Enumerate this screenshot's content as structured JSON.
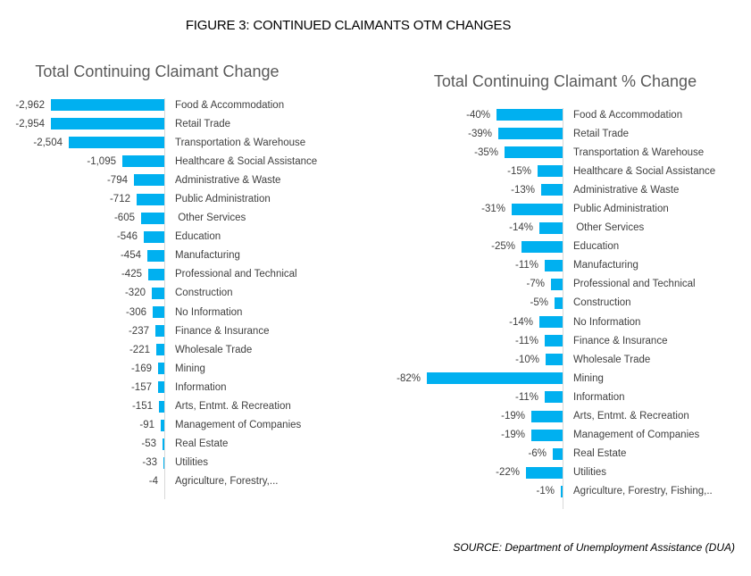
{
  "figure_title": "FIGURE 3: CONTINUED CLAIMANTS OTM CHANGES",
  "source": "SOURCE: Department of Unemployment Assistance (DUA)",
  "colors": {
    "bar": "#00B0F0",
    "chart_title": "#595959",
    "label": "#404040",
    "axis_line": "#D9D9D9"
  },
  "chart_data": [
    {
      "type": "bar",
      "orientation": "horizontal",
      "title": "Total Continuing Claimant Change",
      "legend": "none",
      "value_axis_visible": false,
      "xlim": [
        -3000,
        0
      ],
      "categories": [
        "Food & Accommodation",
        "Retail Trade",
        "Transportation & Warehouse",
        "Healthcare & Social Assistance",
        "Administrative & Waste",
        "Public Administration",
        " Other Services",
        "Education",
        "Manufacturing",
        "Professional and Technical",
        "Construction",
        "No Information",
        "Finance & Insurance",
        "Wholesale Trade",
        "Mining",
        "Information",
        "Arts, Entmt. & Recreation",
        "Management of Companies",
        "Real Estate",
        "Utilities",
        "Agriculture, Forestry,..."
      ],
      "values": [
        -2962,
        -2954,
        -2504,
        -1095,
        -794,
        -712,
        -605,
        -546,
        -454,
        -425,
        -320,
        -306,
        -237,
        -221,
        -169,
        -157,
        -151,
        -91,
        -53,
        -33,
        -4
      ],
      "value_labels": [
        "-2,962",
        "-2,954",
        "-2,504",
        "-1,095",
        "-794",
        "-712",
        "-605",
        "-546",
        "-454",
        "-425",
        "-320",
        "-306",
        "-237",
        "-221",
        "-169",
        "-157",
        "-151",
        "-91",
        "-53",
        "-33",
        "-4"
      ]
    },
    {
      "type": "bar",
      "orientation": "horizontal",
      "title": "Total Continuing Claimant % Change",
      "legend": "none",
      "value_axis_visible": false,
      "xlim": [
        -90,
        0
      ],
      "categories": [
        "Food & Accommodation",
        "Retail Trade",
        "Transportation & Warehouse",
        "Healthcare & Social Assistance",
        "Administrative & Waste",
        "Public Administration",
        " Other Services",
        "Education",
        "Manufacturing",
        "Professional and Technical",
        "Construction",
        "No Information",
        "Finance & Insurance",
        "Wholesale Trade",
        "Mining",
        "Information",
        "Arts, Entmt. & Recreation",
        "Management of Companies",
        "Real Estate",
        "Utilities",
        "Agriculture, Forestry, Fishing,.."
      ],
      "values": [
        -40,
        -39,
        -35,
        -15,
        -13,
        -31,
        -14,
        -25,
        -11,
        -7,
        -5,
        -14,
        -11,
        -10,
        -82,
        -11,
        -19,
        -19,
        -6,
        -22,
        -1
      ],
      "value_labels": [
        "-40%",
        "-39%",
        "-35%",
        "-15%",
        "-13%",
        "-31%",
        "-14%",
        "-25%",
        "-11%",
        "-7%",
        "-5%",
        "-14%",
        "-11%",
        "-10%",
        "-82%",
        "-11%",
        "-19%",
        "-19%",
        "-6%",
        "-22%",
        "-1%"
      ]
    }
  ]
}
